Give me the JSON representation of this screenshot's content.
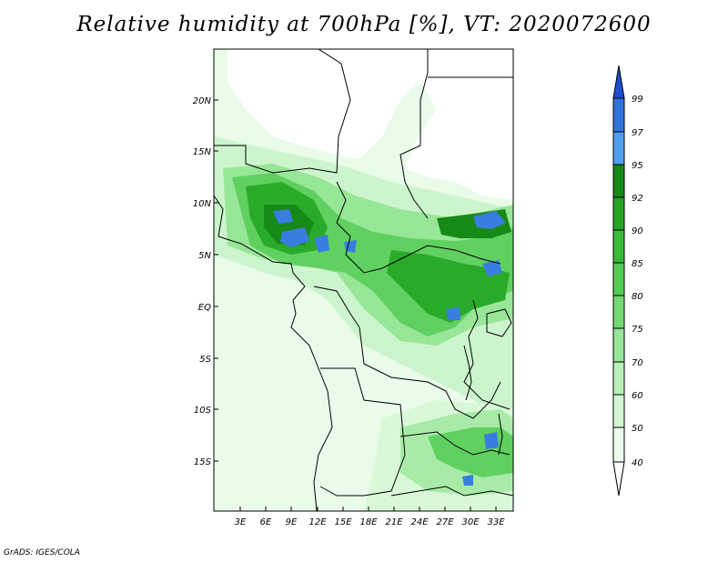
{
  "title": "Relative humidity at 700hPa [%], VT: 2020072600",
  "footer": "GrADS: IGES/COLA",
  "map": {
    "variable": "Relative humidity at 700hPa",
    "units": "%",
    "valid_time": "2020072600",
    "lat_labels": [
      "20N",
      "15N",
      "10N",
      "5N",
      "EQ",
      "5S",
      "10S",
      "15S"
    ],
    "lon_labels": [
      "3E",
      "6E",
      "9E",
      "12E",
      "15E",
      "18E",
      "21E",
      "24E",
      "27E",
      "30E",
      "33E"
    ]
  },
  "colorbar": {
    "levels": [
      "99",
      "97",
      "95",
      "92",
      "90",
      "85",
      "80",
      "75",
      "70",
      "60",
      "50",
      "40"
    ],
    "colors": [
      "#1e4fd0",
      "#2f72e0",
      "#4fa0f0",
      "#168a16",
      "#24a624",
      "#38bb38",
      "#52cc52",
      "#74da74",
      "#98e698",
      "#b8f0b8",
      "#d4f7d4",
      "#ecfcec",
      "#ffffff"
    ]
  }
}
